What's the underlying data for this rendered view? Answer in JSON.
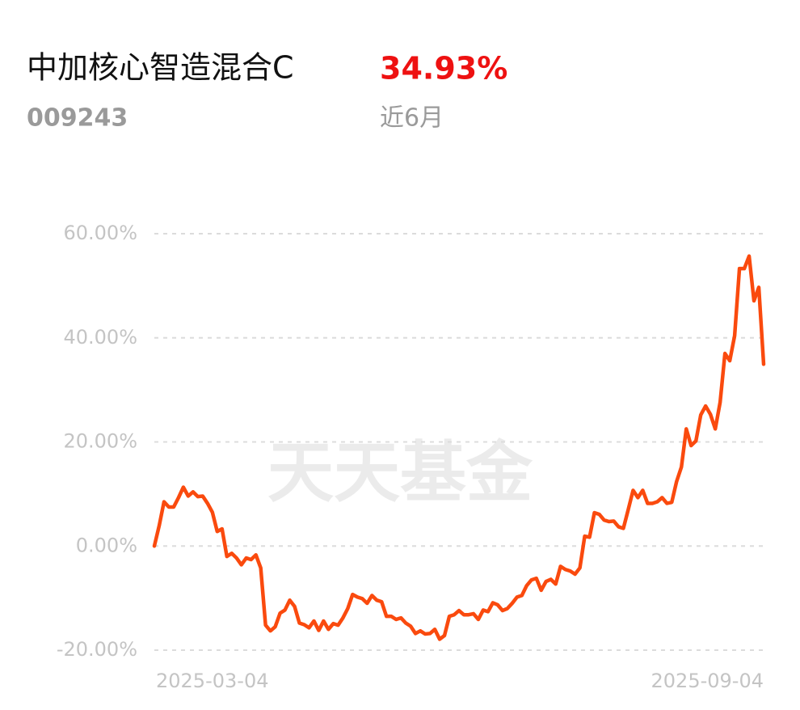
{
  "header": {
    "fund_name": "中加核心智造混合C",
    "fund_code": "009243",
    "return_value": "34.93%",
    "period": "近6月"
  },
  "watermark": "天天基金",
  "chart_data": {
    "type": "line",
    "categories": [
      "2025-03-04",
      null,
      null,
      null,
      null,
      null,
      null,
      null,
      null,
      null,
      null,
      null,
      null,
      null,
      null,
      null,
      null,
      null,
      null,
      null,
      null,
      null,
      null,
      null,
      null,
      null,
      null,
      null,
      null,
      null,
      null,
      null,
      null,
      null,
      null,
      null,
      null,
      null,
      null,
      null,
      null,
      null,
      null,
      null,
      null,
      null,
      null,
      null,
      null,
      null,
      null,
      null,
      null,
      null,
      null,
      null,
      null,
      null,
      null,
      null,
      null,
      null,
      null,
      null,
      null,
      null,
      null,
      null,
      null,
      null,
      null,
      null,
      null,
      null,
      null,
      null,
      null,
      null,
      null,
      null,
      null,
      null,
      null,
      null,
      null,
      null,
      null,
      null,
      null,
      null,
      null,
      null,
      null,
      null,
      null,
      null,
      null,
      null,
      null,
      null,
      null,
      null,
      null,
      null,
      null,
      null,
      null,
      null,
      null,
      null,
      null,
      null,
      null,
      null,
      null,
      null,
      null,
      null,
      null,
      null,
      null,
      null,
      null,
      null,
      null,
      null,
      "2025-09-04"
    ],
    "values": [
      0,
      3.9,
      8.5,
      7.5,
      7.5,
      9.3,
      11.3,
      9.6,
      10.4,
      9.5,
      9.6,
      8.2,
      6.5,
      2.8,
      3.3,
      -2.0,
      -1.4,
      -2.3,
      -3.6,
      -2.3,
      -2.6,
      -1.7,
      -4.2,
      -15.2,
      -16.3,
      -15.5,
      -12.9,
      -12.3,
      -10.4,
      -11.6,
      -14.8,
      -15.1,
      -15.7,
      -14.4,
      -16.2,
      -14.4,
      -16.0,
      -14.9,
      -15.2,
      -13.8,
      -12.0,
      -9.3,
      -9.8,
      -10.1,
      -11.0,
      -9.5,
      -10.4,
      -10.7,
      -13.5,
      -13.5,
      -14.1,
      -13.8,
      -14.8,
      -15.4,
      -16.8,
      -16.3,
      -16.9,
      -16.8,
      -16.0,
      -17.9,
      -17.2,
      -13.5,
      -13.2,
      -12.4,
      -13.2,
      -13.2,
      -13.0,
      -14.1,
      -12.3,
      -12.6,
      -10.9,
      -11.3,
      -12.4,
      -12.0,
      -11.0,
      -9.8,
      -9.5,
      -7.6,
      -6.5,
      -6.2,
      -8.5,
      -6.8,
      -6.4,
      -7.3,
      -3.9,
      -4.5,
      -4.8,
      -5.4,
      -4.2,
      1.9,
      1.7,
      6.4,
      6.1,
      5.0,
      4.7,
      4.8,
      3.7,
      3.4,
      7.0,
      10.7,
      9.3,
      10.7,
      8.2,
      8.2,
      8.5,
      9.3,
      8.2,
      8.4,
      12.4,
      15.2,
      22.5,
      19.3,
      20.2,
      25.2,
      26.9,
      25.3,
      22.5,
      27.6,
      37.0,
      35.6,
      40.4,
      53.3,
      53.3,
      55.7,
      47.1,
      49.7,
      34.93
    ],
    "color": "#fa4a0e",
    "ylim": [
      -20,
      60
    ],
    "yticks": [
      {
        "value": -20,
        "label": "-20.00%"
      },
      {
        "value": 0,
        "label": "0.00%"
      },
      {
        "value": 20,
        "label": "20.00%"
      },
      {
        "value": 40,
        "label": "40.00%"
      },
      {
        "value": 60,
        "label": "60.00%"
      }
    ],
    "grid": true
  }
}
